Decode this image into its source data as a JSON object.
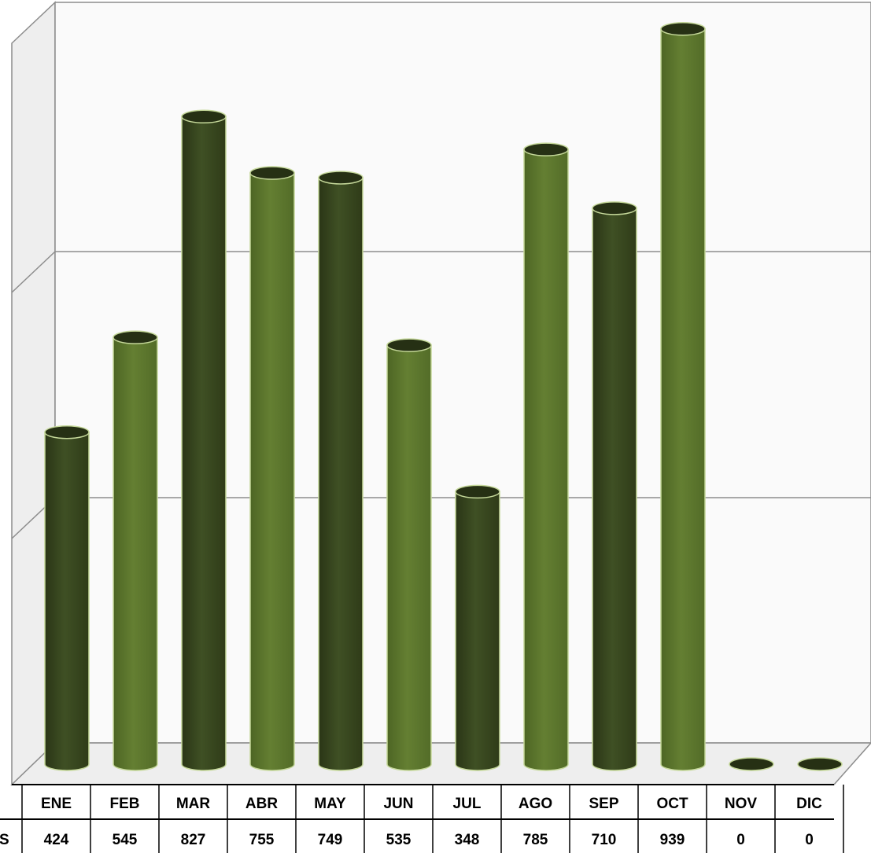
{
  "chart_data": {
    "type": "bar",
    "style": "3d-cylinder",
    "categories": [
      "ENE",
      "FEB",
      "MAR",
      "ABR",
      "MAY",
      "JUN",
      "JUL",
      "AGO",
      "SEP",
      "OCT",
      "NOV",
      "DIC"
    ],
    "series": [
      {
        "name": "",
        "values": [
          424,
          545,
          827,
          755,
          749,
          535,
          348,
          785,
          710,
          939,
          0,
          0
        ]
      }
    ],
    "row_label_partial": "S",
    "axis_labels_visible": false,
    "gridlines": true,
    "legend": "none",
    "data_table": true,
    "colors": {
      "bar_dark": "#3d4c22",
      "bar_light": "#5e7a2e",
      "bar_edge": "#c5d89a",
      "grid": "#8c8c8c",
      "back_wall": "#fafafa",
      "side_wall": "#eeeeee",
      "floor": "#eeeeee"
    }
  }
}
